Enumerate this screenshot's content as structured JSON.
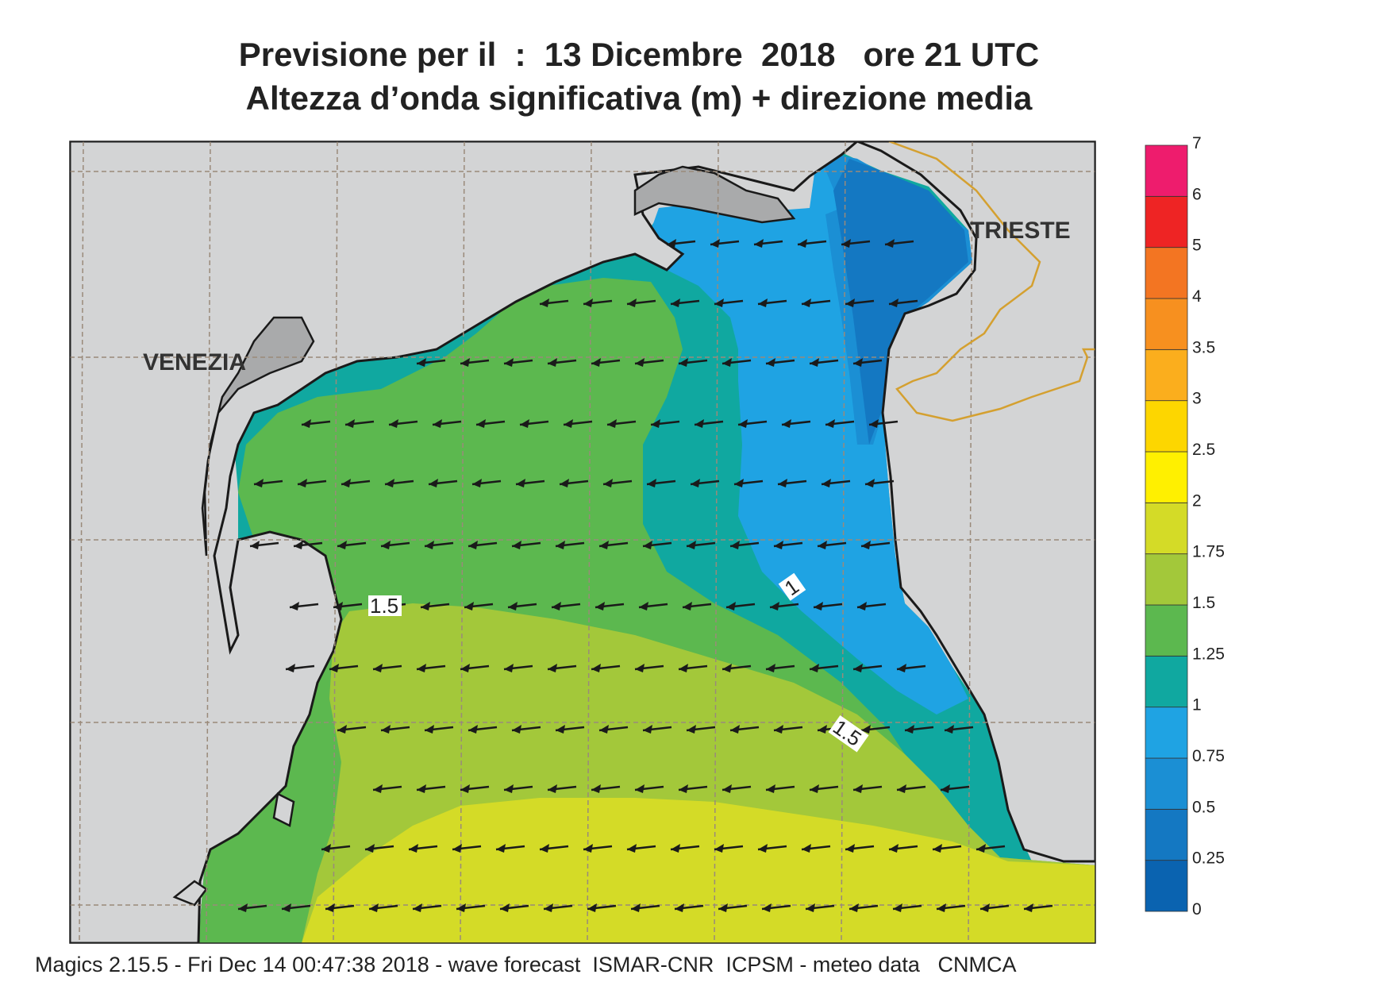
{
  "title": {
    "line1": "Previsione per il  :  13 Dicembre  2018   ore 21 UTC",
    "line2": "Altezza d’onda significativa (m) + direzione media"
  },
  "labels": {
    "cities": [
      "VENEZIA",
      "TRIESTE"
    ],
    "contours": [
      "1.5",
      "1",
      "1.5"
    ]
  },
  "legend": {
    "ticks": [
      "0",
      "0.25",
      "0.5",
      "0.75",
      "1",
      "1.25",
      "1.5",
      "1.75",
      "2",
      "2.5",
      "3",
      "3.5",
      "4",
      "5",
      "6",
      "7"
    ],
    "colors": [
      "#0a63b0",
      "#1478c2",
      "#1b8fd4",
      "#1fa3e3",
      "#10a8a0",
      "#5cb84f",
      "#a3c83a",
      "#d4db27",
      "#fff000",
      "#fdd600",
      "#fbae1d",
      "#f7901f",
      "#f37522",
      "#ee2424",
      "#ee1c6d"
    ]
  },
  "map": {
    "colors": {
      "land": "#d3d4d5",
      "lagoon": "#a9aaab",
      "coast": "#1a1a1a",
      "border": "#d4a030",
      "grid": "#9a8a7a",
      "arrow": "#1a1a1a"
    },
    "wave_direction": "westward"
  },
  "footer": "Magics 2.15.5 - Fri Dec 14 00:47:38 2018 - wave forecast  ISMAR-CNR  ICPSM - meteo data   CNMCA"
}
